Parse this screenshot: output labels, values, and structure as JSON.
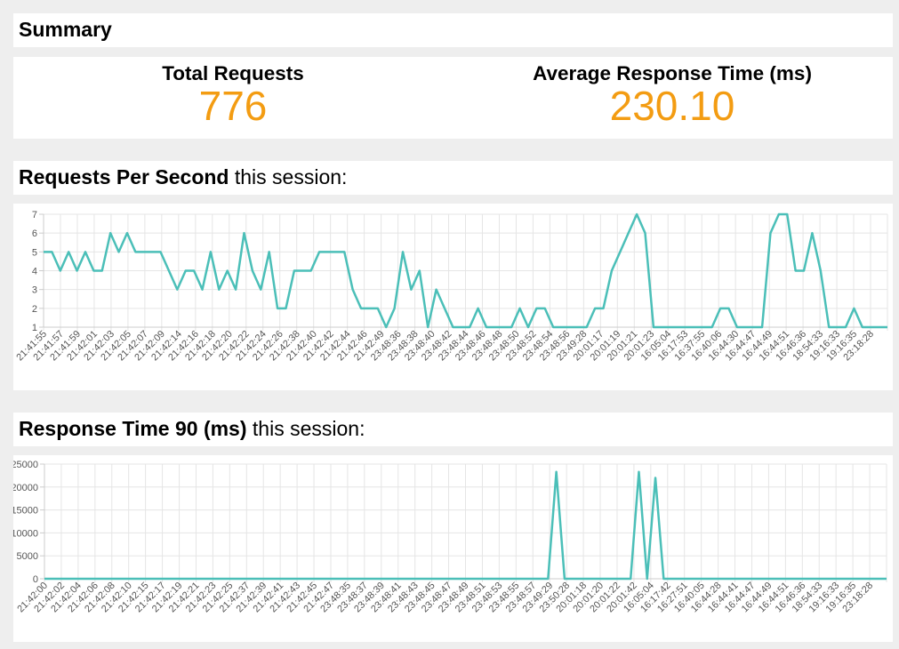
{
  "summary": {
    "title": "Summary",
    "total_requests_label": "Total Requests",
    "total_requests_value": "776",
    "avg_response_label": "Average Response Time (ms)",
    "avg_response_value": "230.10"
  },
  "rps_section": {
    "title_bold": "Requests Per Second",
    "title_rest": " this session:"
  },
  "rt_section": {
    "title_bold": "Response Time 90 (ms)",
    "title_rest": " this session:"
  },
  "colors": {
    "accent": "#f39c12",
    "line": "#4bbfb8",
    "grid": "#e5e5e5"
  },
  "chart_data": [
    {
      "type": "line",
      "title": "Requests Per Second this session:",
      "ylim": [
        1,
        7
      ],
      "yticks": [
        "1",
        "2",
        "3",
        "4",
        "5",
        "6",
        "7"
      ],
      "grid": true,
      "xtick_labels": [
        "21:41:55",
        "21:41:57",
        "21:41:59",
        "21:42:01",
        "21:42:03",
        "21:42:05",
        "21:42:07",
        "21:42:09",
        "21:42:14",
        "21:42:16",
        "21:42:18",
        "21:42:20",
        "21:42:22",
        "21:42:24",
        "21:42:26",
        "21:42:38",
        "21:42:40",
        "21:42:42",
        "21:42:44",
        "21:42:46",
        "21:42:49",
        "23:48:36",
        "23:48:38",
        "23:48:40",
        "23:48:42",
        "23:48:44",
        "23:48:46",
        "23:48:48",
        "23:48:50",
        "23:48:52",
        "23:48:54",
        "23:48:56",
        "23:49:28",
        "20:01:17",
        "20:01:19",
        "20:01:21",
        "20:01:23",
        "16:05:04",
        "16:17:53",
        "16:37:55",
        "16:40:06",
        "16:44:30",
        "16:44:47",
        "16:44:49",
        "16:44:51",
        "16:46:36",
        "18:54:33",
        "19:16:33",
        "19:16:35",
        "23:18:28"
      ],
      "values": [
        5,
        5,
        4,
        5,
        4,
        5,
        4,
        4,
        6,
        5,
        6,
        5,
        5,
        5,
        5,
        4,
        3,
        4,
        4,
        3,
        5,
        3,
        4,
        3,
        6,
        4,
        3,
        5,
        2,
        2,
        4,
        4,
        4,
        5,
        5,
        5,
        5,
        3,
        2,
        2,
        2,
        1,
        2,
        5,
        3,
        4,
        1,
        3,
        2,
        1,
        1,
        1,
        2,
        1,
        1,
        1,
        1,
        2,
        1,
        2,
        2,
        1,
        1,
        1,
        1,
        1,
        2,
        2,
        4,
        5,
        6,
        7,
        6,
        1,
        1,
        1,
        1,
        1,
        1,
        1,
        1,
        2,
        2,
        1,
        1,
        1,
        1,
        6,
        7,
        7,
        4,
        4,
        6,
        4,
        1,
        1,
        1,
        2,
        1,
        1,
        1,
        1
      ]
    },
    {
      "type": "line",
      "title": "Response Time 90 (ms) this session:",
      "ylim": [
        0,
        25000
      ],
      "yticks": [
        "0",
        "5000",
        "10000",
        "15000",
        "20000",
        "25000"
      ],
      "grid": true,
      "xtick_labels": [
        "21:42:00",
        "21:42:02",
        "21:42:04",
        "21:42:06",
        "21:42:08",
        "21:42:10",
        "21:42:15",
        "21:42:17",
        "21:42:19",
        "21:42:21",
        "21:42:23",
        "21:42:25",
        "21:42:37",
        "21:42:39",
        "21:42:41",
        "21:42:43",
        "21:42:45",
        "21:42:47",
        "23:48:35",
        "23:48:37",
        "23:48:39",
        "23:48:41",
        "23:48:43",
        "23:48:45",
        "23:48:47",
        "23:48:49",
        "23:48:51",
        "23:48:53",
        "23:48:55",
        "23:48:57",
        "23:49:29",
        "23:50:28",
        "20:01:18",
        "20:01:20",
        "20:01:22",
        "20:01:42",
        "16:05:04",
        "16:17:42",
        "16:27:51",
        "16:40:05",
        "16:44:28",
        "16:44:41",
        "16:44:47",
        "16:44:49",
        "16:44:51",
        "16:46:36",
        "18:54:33",
        "19:16:33",
        "19:16:35",
        "23:18:28"
      ],
      "values": [
        0,
        0,
        0,
        0,
        0,
        0,
        0,
        0,
        0,
        0,
        0,
        0,
        0,
        0,
        0,
        0,
        0,
        0,
        0,
        0,
        0,
        0,
        0,
        0,
        0,
        0,
        0,
        0,
        0,
        0,
        0,
        0,
        0,
        0,
        0,
        0,
        0,
        0,
        0,
        0,
        0,
        0,
        0,
        0,
        0,
        0,
        0,
        0,
        0,
        0,
        0,
        0,
        0,
        0,
        0,
        0,
        0,
        0,
        0,
        0,
        0,
        0,
        23300,
        0,
        0,
        0,
        0,
        0,
        0,
        0,
        0,
        0,
        23300,
        0,
        22000,
        0,
        0,
        0,
        0,
        0,
        0,
        0,
        0,
        0,
        0,
        0,
        0,
        0,
        0,
        0,
        0,
        0,
        0,
        0,
        0,
        0,
        0,
        0,
        0,
        0,
        0,
        0,
        0
      ]
    }
  ]
}
